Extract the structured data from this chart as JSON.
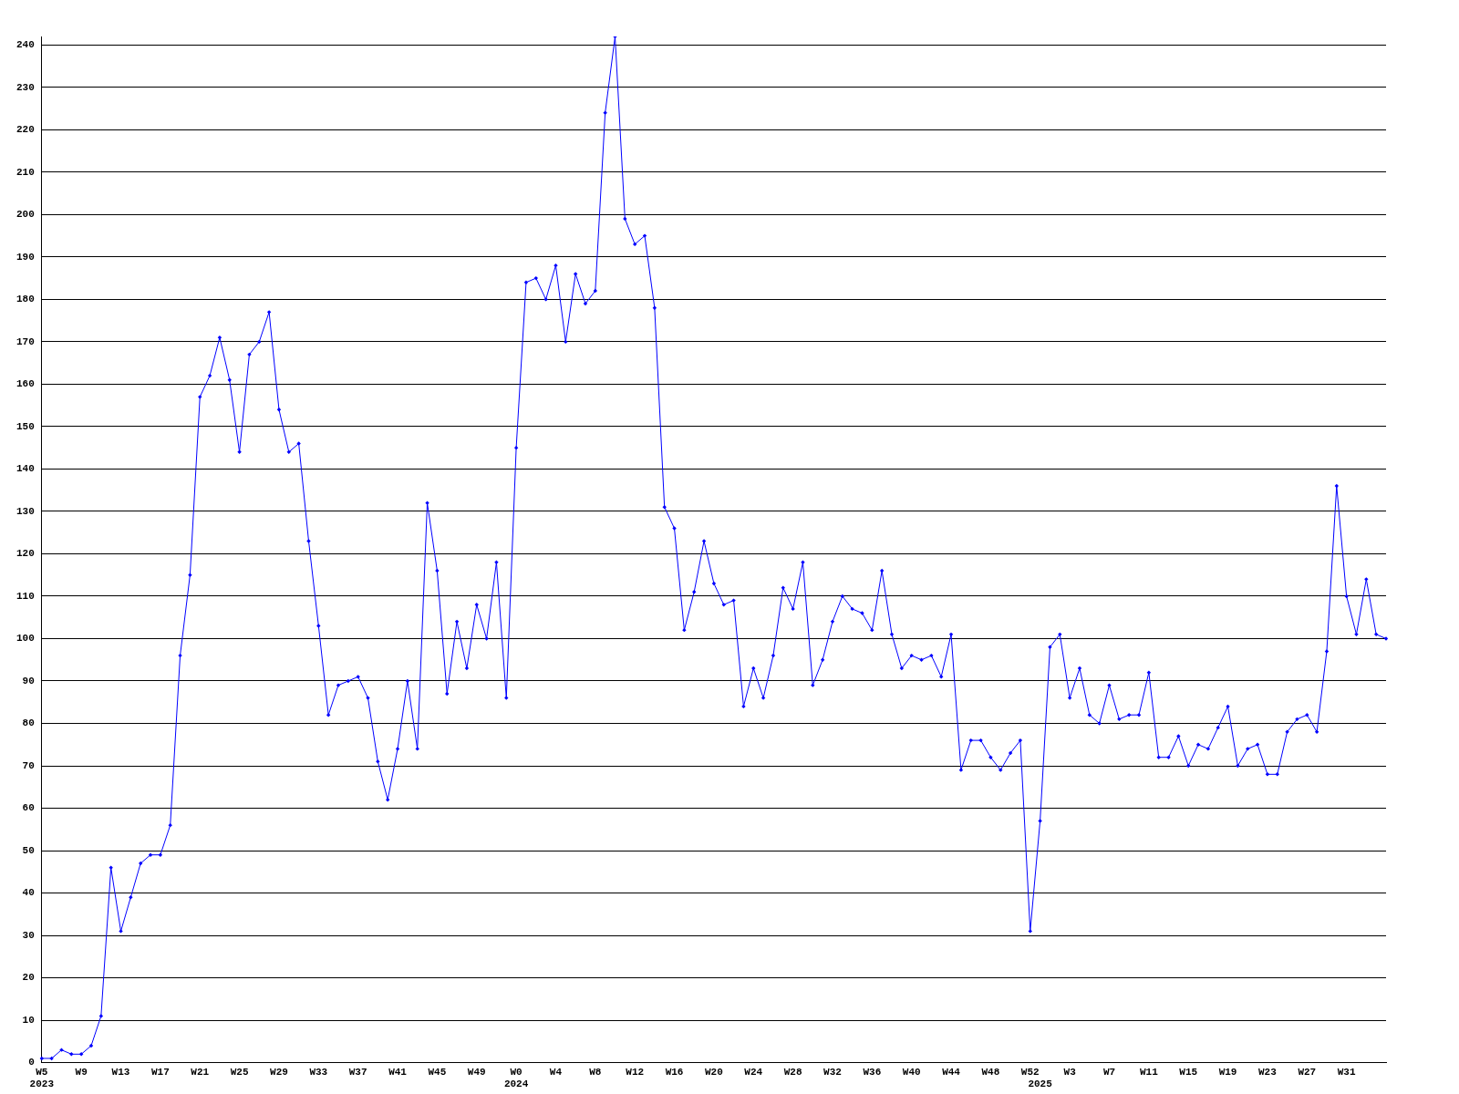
{
  "chart_data": {
    "type": "line",
    "categories": [
      "W5\n2023",
      null,
      null,
      null,
      "W9",
      null,
      null,
      null,
      "W13",
      null,
      null,
      null,
      "W17",
      null,
      null,
      null,
      "W21",
      null,
      null,
      null,
      "W25",
      null,
      null,
      null,
      "W29",
      null,
      null,
      null,
      "W33",
      null,
      null,
      null,
      "W37",
      null,
      null,
      null,
      "W41",
      null,
      null,
      null,
      "W45",
      null,
      null,
      null,
      "W49",
      null,
      null,
      null,
      "W0\n2024",
      null,
      null,
      null,
      "W4",
      null,
      null,
      null,
      "W8",
      null,
      null,
      null,
      "W12",
      null,
      null,
      null,
      "W16",
      null,
      null,
      null,
      "W20",
      null,
      null,
      null,
      "W24",
      null,
      null,
      null,
      "W28",
      null,
      null,
      null,
      "W32",
      null,
      null,
      null,
      "W36",
      null,
      null,
      null,
      "W40",
      null,
      null,
      null,
      "W44",
      null,
      null,
      null,
      "W48",
      null,
      null,
      null,
      "W52",
      "\n2025",
      null,
      null,
      "W3",
      null,
      null,
      null,
      "W7",
      null,
      null,
      null,
      "W11",
      null,
      null,
      null,
      "W15",
      null,
      null,
      null,
      "W19",
      null,
      null,
      null,
      "W23",
      null,
      null,
      null,
      "W27",
      null,
      null,
      null,
      "W31",
      null,
      null,
      null,
      null
    ],
    "series": [
      {
        "color": "#0000ff",
        "values": [
          1,
          1,
          3,
          2,
          2,
          4,
          11,
          46,
          31,
          39,
          47,
          49,
          49,
          56,
          96,
          115,
          157,
          162,
          171,
          161,
          144,
          167,
          170,
          177,
          154,
          144,
          146,
          123,
          103,
          82,
          89,
          90,
          91,
          86,
          71,
          62,
          74,
          90,
          74,
          132,
          116,
          87,
          104,
          93,
          108,
          100,
          118,
          86,
          145,
          184,
          185,
          180,
          188,
          170,
          186,
          179,
          182,
          224,
          242,
          199,
          193,
          195,
          178,
          131,
          126,
          102,
          111,
          123,
          113,
          108,
          109,
          84,
          93,
          86,
          96,
          112,
          107,
          118,
          89,
          95,
          104,
          110,
          107,
          106,
          102,
          116,
          101,
          93,
          96,
          95,
          96,
          91,
          101,
          69,
          76,
          76,
          72,
          69,
          73,
          76,
          31,
          57,
          98,
          101,
          86,
          93,
          82,
          80,
          89,
          81,
          82,
          82,
          92,
          72,
          72,
          77,
          70,
          75,
          74,
          79,
          84,
          70,
          74,
          75,
          68,
          68,
          78,
          81,
          82,
          78,
          97,
          136,
          110,
          101,
          114,
          101,
          100
        ]
      }
    ],
    "ylim": [
      0,
      242
    ],
    "yticks": [
      0,
      10,
      20,
      30,
      40,
      50,
      60,
      70,
      80,
      90,
      100,
      110,
      120,
      130,
      140,
      150,
      160,
      170,
      180,
      190,
      200,
      210,
      220,
      230,
      240
    ],
    "grid": "y",
    "marker": "diamond",
    "line_style": "solid",
    "legend": false
  }
}
